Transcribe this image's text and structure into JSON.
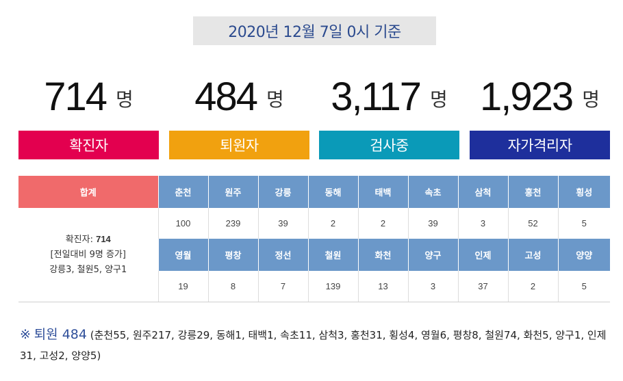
{
  "date_banner": "2020년 12월 7일 0시 기준",
  "stats": [
    {
      "number": "714",
      "unit": "명",
      "label": "확진자",
      "color": "#e3004f"
    },
    {
      "number": "484",
      "unit": "명",
      "label": "퇴원자",
      "color": "#f1a10f"
    },
    {
      "number": "3,117",
      "unit": "명",
      "label": "검사중",
      "color": "#0a9ab8"
    },
    {
      "number": "1,923",
      "unit": "명",
      "label": "자가격리자",
      "color": "#1e2f9c"
    }
  ],
  "table": {
    "total_header": "합계",
    "total_line1_label": "확진자: ",
    "total_line1_value": "714",
    "total_line2": "[전일대비 9명 증가]",
    "total_line3": "강릉3, 철원5, 양구1",
    "row1_regions": [
      "춘천",
      "원주",
      "강릉",
      "동해",
      "태백",
      "속초",
      "삼척",
      "홍천",
      "횡성"
    ],
    "row1_values": [
      "100",
      "239",
      "39",
      "2",
      "2",
      "39",
      "3",
      "52",
      "5"
    ],
    "row2_regions": [
      "영월",
      "평창",
      "정선",
      "철원",
      "화천",
      "양구",
      "인제",
      "고성",
      "양양"
    ],
    "row2_values": [
      "19",
      "8",
      "7",
      "139",
      "13",
      "3",
      "37",
      "2",
      "5"
    ]
  },
  "footnote": {
    "mark": "※",
    "lead": "퇴원 484",
    "detail": "(춘천55, 원주217, 강릉29, 동해1, 태백1, 속초11, 삼척3, 홍천31, 횡성4, 영월6, 평창8, 철원74, 화천5, 양구1, 인제31, 고성2, 양양5)"
  },
  "colors": {
    "banner_text": "#2b4a8e",
    "total_header_bg": "#f06a6b",
    "region_header_bg": "#6b98c9"
  }
}
